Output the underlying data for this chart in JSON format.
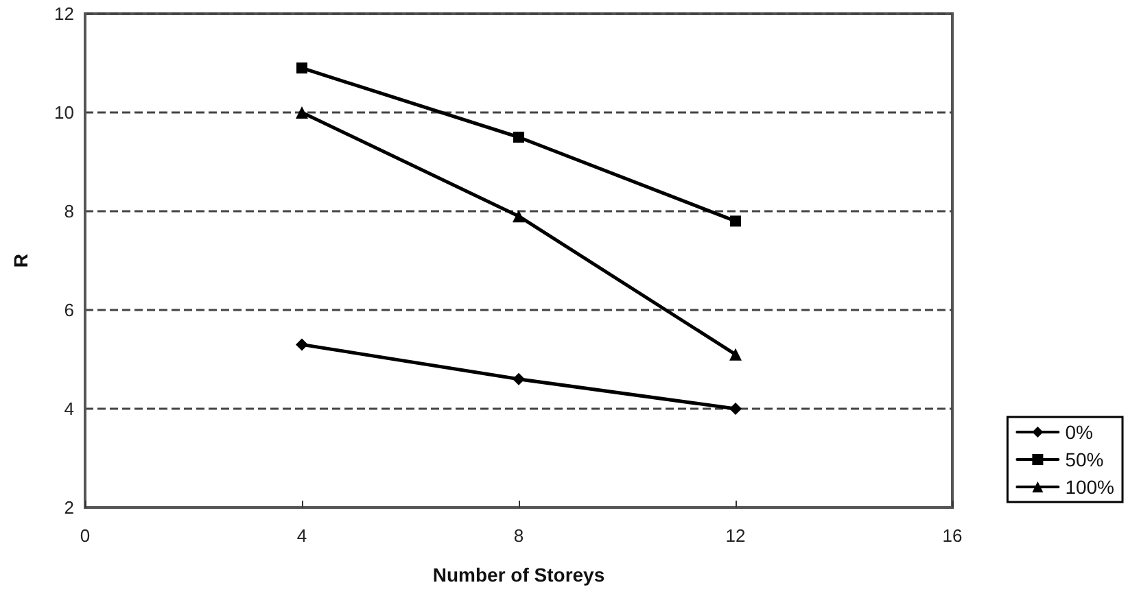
{
  "chart_data": {
    "type": "line",
    "xlabel": "Number of Storeys",
    "ylabel": "R",
    "x": [
      4,
      8,
      12
    ],
    "series": [
      {
        "name": "0%",
        "color": "#000000",
        "marker": "diamond",
        "values": [
          5.3,
          4.6,
          4.0
        ]
      },
      {
        "name": "50%",
        "color": "#000000",
        "marker": "square",
        "values": [
          10.9,
          9.5,
          7.8
        ]
      },
      {
        "name": "100%",
        "color": "#000000",
        "marker": "triangle",
        "values": [
          10.0,
          7.9,
          5.1
        ]
      }
    ],
    "xlim": [
      0,
      16
    ],
    "xticks": [
      0,
      4,
      8,
      12,
      16
    ],
    "ylim": [
      2,
      12
    ],
    "yticks": [
      2,
      4,
      6,
      8,
      10,
      12
    ],
    "grid": "y",
    "legend": "bottom right",
    "line_style": "solid"
  }
}
